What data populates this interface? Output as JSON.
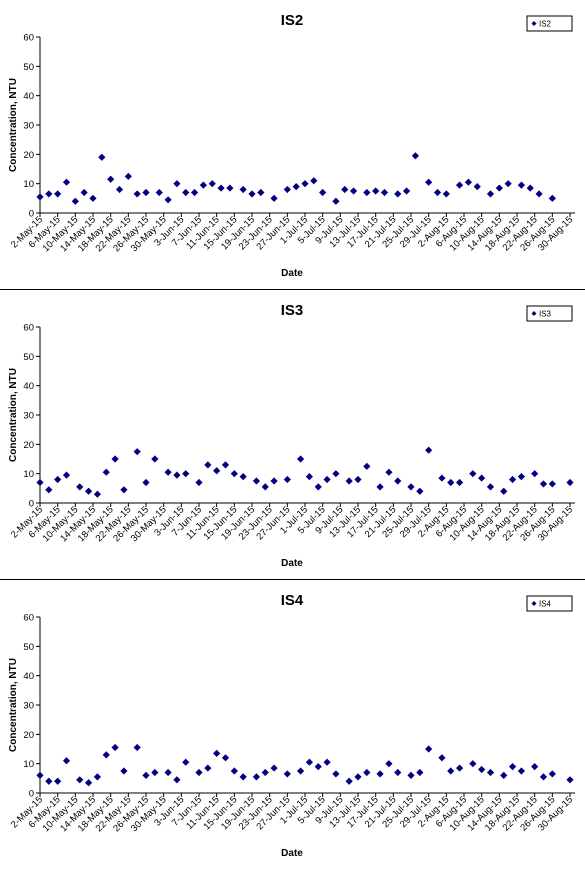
{
  "chart_data": [
    {
      "type": "scatter",
      "title": "IS2",
      "xlabel": "Date",
      "ylabel": "Concentration, NTU",
      "ylim": [
        0,
        60
      ],
      "yticks": [
        0,
        10,
        20,
        30,
        40,
        50,
        60
      ],
      "xticks": [
        "2-May-15",
        "6-May-15",
        "10-May-15",
        "14-May-15",
        "18-May-15",
        "22-May-15",
        "26-May-15",
        "30-May-15",
        "3-Jun-15",
        "7-Jun-15",
        "11-Jun-15",
        "15-Jun-15",
        "19-Jun-15",
        "23-Jun-15",
        "27-Jun-15",
        "1-Jul-15",
        "5-Jul-15",
        "9-Jul-15",
        "13-Jul-15",
        "17-Jul-15",
        "21-Jul-15",
        "25-Jul-15",
        "29-Jul-15",
        "2-Aug-15",
        "6-Aug-15",
        "10-Aug-15",
        "14-Aug-15",
        "18-Aug-15",
        "22-Aug-15",
        "26-Aug-15",
        "30-Aug-15"
      ],
      "legend_position": "top-right",
      "marker_color": "#000080",
      "series": [
        {
          "name": "IS2",
          "points": [
            [
              0,
              5.5
            ],
            [
              2,
              6.5
            ],
            [
              4,
              6.5
            ],
            [
              6,
              10.5
            ],
            [
              8,
              4
            ],
            [
              10,
              7
            ],
            [
              12,
              5
            ],
            [
              14,
              19
            ],
            [
              16,
              11.5
            ],
            [
              18,
              8
            ],
            [
              20,
              12.5
            ],
            [
              22,
              6.5
            ],
            [
              24,
              7
            ],
            [
              27,
              7
            ],
            [
              29,
              4.5
            ],
            [
              31,
              10
            ],
            [
              33,
              7
            ],
            [
              35,
              7
            ],
            [
              37,
              9.5
            ],
            [
              39,
              10
            ],
            [
              41,
              8.5
            ],
            [
              43,
              8.5
            ],
            [
              46,
              8
            ],
            [
              48,
              6.5
            ],
            [
              50,
              7
            ],
            [
              53,
              5
            ],
            [
              56,
              8
            ],
            [
              58,
              9
            ],
            [
              60,
              10
            ],
            [
              62,
              11
            ],
            [
              64,
              7
            ],
            [
              67,
              4
            ],
            [
              69,
              8
            ],
            [
              71,
              7.5
            ],
            [
              74,
              7
            ],
            [
              76,
              7.5
            ],
            [
              78,
              7
            ],
            [
              81,
              6.5
            ],
            [
              83,
              7.5
            ],
            [
              85,
              19.5
            ],
            [
              88,
              10.5
            ],
            [
              90,
              7
            ],
            [
              92,
              6.5
            ],
            [
              95,
              9.5
            ],
            [
              97,
              10.5
            ],
            [
              99,
              9
            ],
            [
              102,
              6.5
            ],
            [
              104,
              8.5
            ],
            [
              106,
              10
            ],
            [
              109,
              9.5
            ],
            [
              111,
              8.5
            ],
            [
              113,
              6.5
            ],
            [
              116,
              5
            ]
          ]
        }
      ]
    },
    {
      "type": "scatter",
      "title": "IS3",
      "xlabel": "Date",
      "ylabel": "Concentration, NTU",
      "ylim": [
        0,
        60
      ],
      "yticks": [
        0,
        10,
        20,
        30,
        40,
        50,
        60
      ],
      "xticks": [
        "2-May-15",
        "6-May-15",
        "10-May-15",
        "14-May-15",
        "18-May-15",
        "22-May-15",
        "26-May-15",
        "30-May-15",
        "3-Jun-15",
        "7-Jun-15",
        "11-Jun-15",
        "15-Jun-15",
        "19-Jun-15",
        "23-Jun-15",
        "27-Jun-15",
        "1-Jul-15",
        "5-Jul-15",
        "9-Jul-15",
        "13-Jul-15",
        "17-Jul-15",
        "21-Jul-15",
        "25-Jul-15",
        "29-Jul-15",
        "2-Aug-15",
        "6-Aug-15",
        "10-Aug-15",
        "14-Aug-15",
        "18-Aug-15",
        "22-Aug-15",
        "26-Aug-15",
        "30-Aug-15"
      ],
      "legend_position": "top-right",
      "marker_color": "#000080",
      "series": [
        {
          "name": "IS3",
          "points": [
            [
              0,
              7
            ],
            [
              2,
              4.5
            ],
            [
              4,
              8
            ],
            [
              6,
              9.5
            ],
            [
              9,
              5.5
            ],
            [
              11,
              4
            ],
            [
              13,
              3
            ],
            [
              15,
              10.5
            ],
            [
              17,
              15
            ],
            [
              19,
              4.5
            ],
            [
              22,
              17.5
            ],
            [
              24,
              7
            ],
            [
              26,
              15
            ],
            [
              29,
              10.5
            ],
            [
              31,
              9.5
            ],
            [
              33,
              10
            ],
            [
              36,
              7
            ],
            [
              38,
              13
            ],
            [
              40,
              11
            ],
            [
              42,
              13
            ],
            [
              44,
              10
            ],
            [
              46,
              9
            ],
            [
              49,
              7.5
            ],
            [
              51,
              5.5
            ],
            [
              53,
              7.5
            ],
            [
              56,
              8
            ],
            [
              59,
              15
            ],
            [
              61,
              9
            ],
            [
              63,
              5.5
            ],
            [
              65,
              8
            ],
            [
              67,
              10
            ],
            [
              70,
              7.5
            ],
            [
              72,
              8
            ],
            [
              74,
              12.5
            ],
            [
              77,
              5.5
            ],
            [
              79,
              10.5
            ],
            [
              81,
              7.5
            ],
            [
              84,
              5.5
            ],
            [
              86,
              4
            ],
            [
              88,
              18
            ],
            [
              91,
              8.5
            ],
            [
              93,
              7
            ],
            [
              95,
              7
            ],
            [
              98,
              10
            ],
            [
              100,
              8.5
            ],
            [
              102,
              5.5
            ],
            [
              105,
              4
            ],
            [
              107,
              8
            ],
            [
              109,
              9
            ],
            [
              112,
              10
            ],
            [
              114,
              6.5
            ],
            [
              116,
              6.5
            ],
            [
              120,
              7
            ]
          ]
        }
      ]
    },
    {
      "type": "scatter",
      "title": "IS4",
      "xlabel": "Date",
      "ylabel": "Concentration, NTU",
      "ylim": [
        0,
        60
      ],
      "yticks": [
        0,
        10,
        20,
        30,
        40,
        50,
        60
      ],
      "xticks": [
        "2-May-15",
        "6-May-15",
        "10-May-15",
        "14-May-15",
        "18-May-15",
        "22-May-15",
        "26-May-15",
        "30-May-15",
        "3-Jun-15",
        "7-Jun-15",
        "11-Jun-15",
        "15-Jun-15",
        "19-Jun-15",
        "23-Jun-15",
        "27-Jun-15",
        "1-Jul-15",
        "5-Jul-15",
        "9-Jul-15",
        "13-Jul-15",
        "17-Jul-15",
        "21-Jul-15",
        "25-Jul-15",
        "29-Jul-15",
        "2-Aug-15",
        "6-Aug-15",
        "10-Aug-15",
        "14-Aug-15",
        "18-Aug-15",
        "22-Aug-15",
        "26-Aug-15",
        "30-Aug-15"
      ],
      "legend_position": "top-right",
      "marker_color": "#000080",
      "series": [
        {
          "name": "IS4",
          "points": [
            [
              0,
              6
            ],
            [
              2,
              4
            ],
            [
              4,
              4
            ],
            [
              6,
              11
            ],
            [
              9,
              4.5
            ],
            [
              11,
              3.5
            ],
            [
              13,
              5.5
            ],
            [
              15,
              13
            ],
            [
              17,
              15.5
            ],
            [
              19,
              7.5
            ],
            [
              22,
              15.5
            ],
            [
              24,
              6
            ],
            [
              26,
              7
            ],
            [
              29,
              7
            ],
            [
              31,
              4.5
            ],
            [
              33,
              10.5
            ],
            [
              36,
              7
            ],
            [
              38,
              8.5
            ],
            [
              40,
              13.5
            ],
            [
              42,
              12
            ],
            [
              44,
              7.5
            ],
            [
              46,
              5.5
            ],
            [
              49,
              5.5
            ],
            [
              51,
              7
            ],
            [
              53,
              8.5
            ],
            [
              56,
              6.5
            ],
            [
              59,
              7.5
            ],
            [
              61,
              10.5
            ],
            [
              63,
              9
            ],
            [
              65,
              10.5
            ],
            [
              67,
              6.5
            ],
            [
              70,
              4
            ],
            [
              72,
              5.5
            ],
            [
              74,
              7
            ],
            [
              77,
              6.5
            ],
            [
              79,
              10
            ],
            [
              81,
              7
            ],
            [
              84,
              6
            ],
            [
              86,
              7
            ],
            [
              88,
              15
            ],
            [
              91,
              12
            ],
            [
              93,
              7.5
            ],
            [
              95,
              8.5
            ],
            [
              98,
              10
            ],
            [
              100,
              8
            ],
            [
              102,
              7
            ],
            [
              105,
              6
            ],
            [
              107,
              9
            ],
            [
              109,
              7.5
            ],
            [
              112,
              9
            ],
            [
              114,
              5.5
            ],
            [
              116,
              6.5
            ],
            [
              120,
              4.5
            ]
          ]
        }
      ]
    }
  ]
}
